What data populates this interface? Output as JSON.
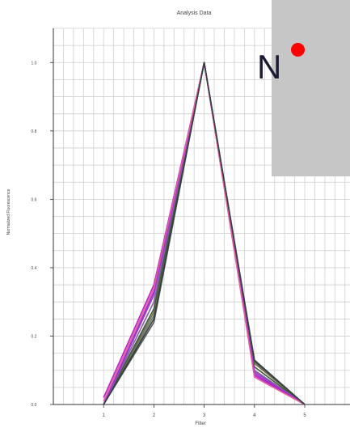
{
  "chart_data": {
    "type": "line",
    "title": "Analysis Data",
    "xlabel": "Filter",
    "ylabel": "Normalized Fluorescence",
    "xlim": [
      0,
      5.9
    ],
    "ylim": [
      0,
      1.1
    ],
    "x_ticks": [
      "1",
      "2",
      "3",
      "4",
      "5"
    ],
    "y_ticks": [
      "0.0",
      "0.2",
      "0.4",
      "0.6",
      "0.8",
      "1.0"
    ],
    "grid": true,
    "legend": "none",
    "series": [
      {
        "color": "#555555",
        "values": [
          [
            1,
            0
          ],
          [
            2,
            0.24
          ],
          [
            3,
            1.0
          ],
          [
            4,
            0.13
          ],
          [
            5,
            0
          ]
        ]
      },
      {
        "color": "#6a7a6a",
        "values": [
          [
            1,
            0
          ],
          [
            2,
            0.26
          ],
          [
            3,
            1.0
          ],
          [
            4,
            0.125
          ],
          [
            5,
            0
          ]
        ]
      },
      {
        "color": "#7a6a50",
        "values": [
          [
            1,
            0
          ],
          [
            2,
            0.27
          ],
          [
            3,
            1.0
          ],
          [
            4,
            0.12
          ],
          [
            5,
            0
          ]
        ]
      },
      {
        "color": "#3a5a3a",
        "values": [
          [
            1,
            0
          ],
          [
            2,
            0.28
          ],
          [
            3,
            1.0
          ],
          [
            4,
            0.11
          ],
          [
            5,
            0
          ]
        ]
      },
      {
        "color": "#8060a0",
        "values": [
          [
            1,
            0
          ],
          [
            2,
            0.3
          ],
          [
            3,
            1.0
          ],
          [
            4,
            0.1
          ],
          [
            5,
            0
          ]
        ]
      },
      {
        "color": "#a040c0",
        "values": [
          [
            1,
            0
          ],
          [
            2,
            0.32
          ],
          [
            3,
            1.0
          ],
          [
            4,
            0.095
          ],
          [
            5,
            0
          ]
        ]
      },
      {
        "color": "#9a30d0",
        "values": [
          [
            1,
            0
          ],
          [
            2,
            0.33
          ],
          [
            3,
            1.0
          ],
          [
            4,
            0.09
          ],
          [
            5,
            0
          ]
        ]
      },
      {
        "color": "#c020c0",
        "values": [
          [
            1,
            0.02
          ],
          [
            2,
            0.35
          ],
          [
            3,
            1.0
          ],
          [
            4,
            0.085
          ],
          [
            5,
            0
          ]
        ]
      },
      {
        "color": "#e060a0",
        "values": [
          [
            1,
            0.01
          ],
          [
            2,
            0.34
          ],
          [
            3,
            1.0
          ],
          [
            4,
            0.08
          ],
          [
            5,
            0
          ]
        ]
      },
      {
        "color": "#304040",
        "values": [
          [
            1,
            0
          ],
          [
            2,
            0.25
          ],
          [
            3,
            1.0
          ],
          [
            4,
            0.128
          ],
          [
            5,
            0
          ]
        ]
      }
    ]
  },
  "overlay": {
    "letter": "N",
    "panel_color": "#c6c6c6",
    "dot_color": "#ff0000"
  }
}
